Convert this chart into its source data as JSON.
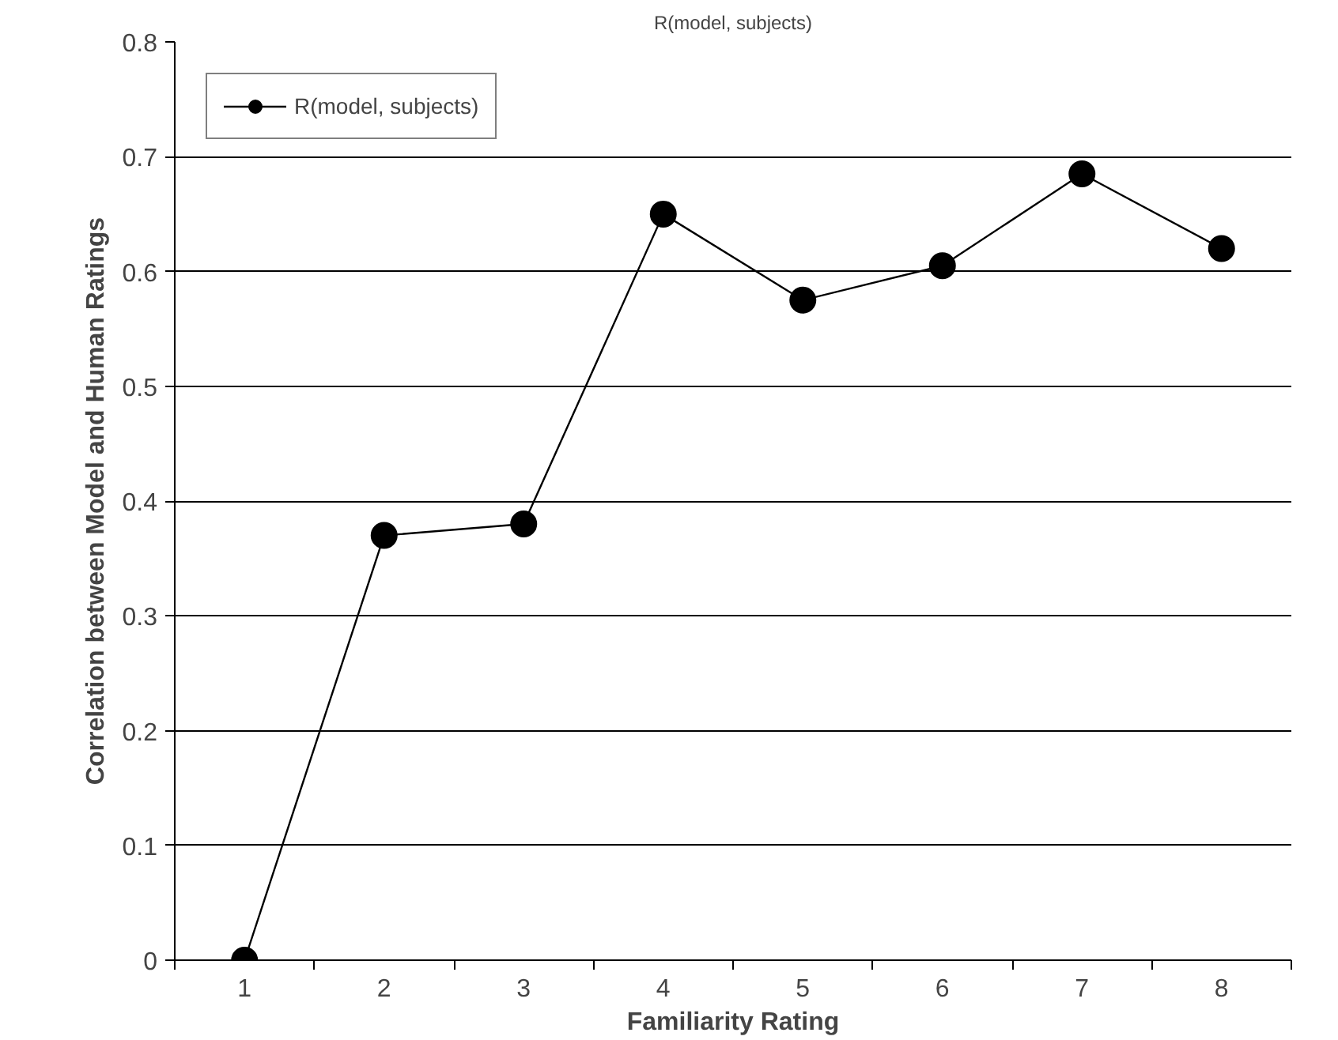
{
  "chart_data": {
    "type": "line",
    "title": "R(model, subjects)",
    "xlabel": "Familiarity Rating",
    "ylabel": "Correlation between Model and Human Ratings",
    "categories": [
      "1",
      "2",
      "3",
      "4",
      "5",
      "6",
      "7",
      "8"
    ],
    "series": [
      {
        "name": "R(model, subjects)",
        "color": "#000000",
        "values": [
          0,
          0.37,
          0.38,
          0.65,
          0.575,
          0.605,
          0.685,
          0.62
        ]
      }
    ],
    "ylim": [
      0,
      0.8
    ],
    "yticks": [
      0,
      0.1,
      0.2,
      0.3,
      0.4,
      0.5,
      0.6,
      0.7,
      0.8
    ],
    "grid": "y",
    "legend": "top left",
    "marker": "circle",
    "line_style": "solid"
  }
}
